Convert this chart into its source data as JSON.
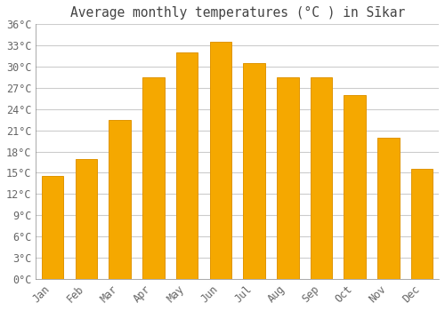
{
  "title": "Average monthly temperatures (°C ) in Sīkar",
  "months": [
    "Jan",
    "Feb",
    "Mar",
    "Apr",
    "May",
    "Jun",
    "Jul",
    "Aug",
    "Sep",
    "Oct",
    "Nov",
    "Dec"
  ],
  "temperatures": [
    14.5,
    17.0,
    22.5,
    28.5,
    32.0,
    33.5,
    30.5,
    28.5,
    28.5,
    26.0,
    20.0,
    15.5
  ],
  "bar_color": "#F5A800",
  "bar_edge_color": "#E09500",
  "background_color": "#FFFFFF",
  "grid_color": "#CCCCCC",
  "text_color": "#666666",
  "title_color": "#444444",
  "ylim": [
    0,
    36
  ],
  "ytick_step": 3,
  "title_fontsize": 10.5,
  "tick_fontsize": 8.5,
  "bar_width": 0.65
}
